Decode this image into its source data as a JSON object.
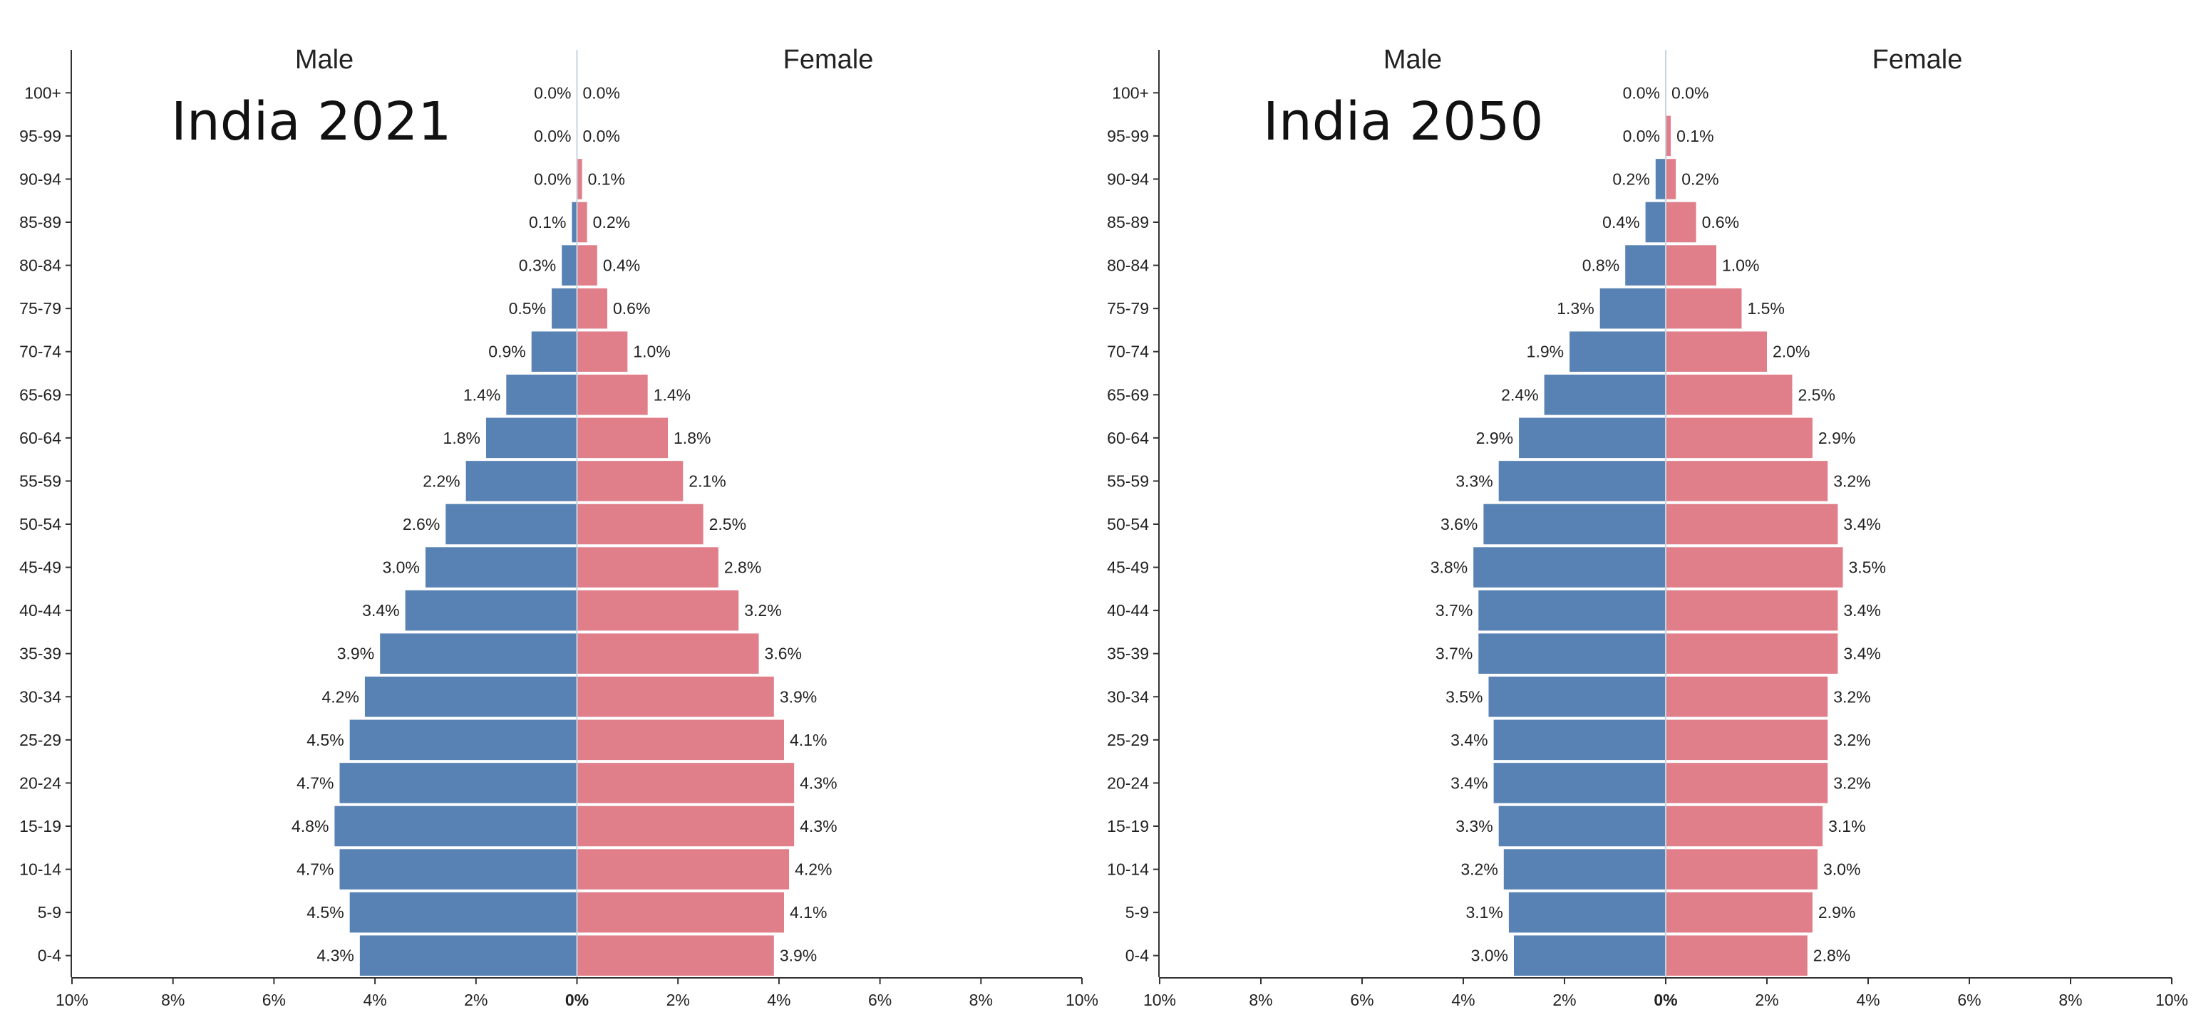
{
  "chart_data": [
    {
      "type": "bar",
      "title": "India 2021",
      "male_label": "Male",
      "female_label": "Female",
      "categories": [
        "0-4",
        "5-9",
        "10-14",
        "15-19",
        "20-24",
        "25-29",
        "30-34",
        "35-39",
        "40-44",
        "45-49",
        "50-54",
        "55-59",
        "60-64",
        "65-69",
        "70-74",
        "75-79",
        "80-84",
        "85-89",
        "90-94",
        "95-99",
        "100+"
      ],
      "series": [
        {
          "name": "Male",
          "values": [
            4.3,
            4.5,
            4.7,
            4.8,
            4.7,
            4.5,
            4.2,
            3.9,
            3.4,
            3.0,
            2.6,
            2.2,
            1.8,
            1.4,
            0.9,
            0.5,
            0.3,
            0.1,
            0.0,
            0.0,
            0.0
          ],
          "color": "#5882b3"
        },
        {
          "name": "Female",
          "values": [
            3.9,
            4.1,
            4.2,
            4.3,
            4.3,
            4.1,
            3.9,
            3.6,
            3.2,
            2.8,
            2.5,
            2.1,
            1.8,
            1.4,
            1.0,
            0.6,
            0.4,
            0.2,
            0.1,
            0.0,
            0.0
          ],
          "color": "#e07f8a"
        }
      ],
      "value_labels": {
        "male": [
          "4.3%",
          "4.5%",
          "4.7%",
          "4.8%",
          "4.7%",
          "4.5%",
          "4.2%",
          "3.9%",
          "3.4%",
          "3.0%",
          "2.6%",
          "2.2%",
          "1.8%",
          "1.4%",
          "0.9%",
          "0.5%",
          "0.3%",
          "0.1%",
          "0.0%",
          "0.0%",
          "0.0%"
        ],
        "female": [
          "3.9%",
          "4.1%",
          "4.2%",
          "4.3%",
          "4.3%",
          "4.1%",
          "3.9%",
          "3.6%",
          "3.2%",
          "2.8%",
          "2.5%",
          "2.1%",
          "1.8%",
          "1.4%",
          "1.0%",
          "0.6%",
          "0.4%",
          "0.2%",
          "0.1%",
          "0.0%",
          "0.0%"
        ]
      },
      "xlim": [
        -10,
        10
      ],
      "x_ticks": [
        -10,
        -8,
        -6,
        -4,
        -2,
        0,
        2,
        4,
        6,
        8,
        10
      ],
      "x_tick_labels": [
        "10%",
        "8%",
        "6%",
        "4%",
        "2%",
        "0%",
        "2%",
        "4%",
        "6%",
        "8%",
        "10%"
      ],
      "grid": false
    },
    {
      "type": "bar",
      "title": "India 2050",
      "male_label": "Male",
      "female_label": "Female",
      "categories": [
        "0-4",
        "5-9",
        "10-14",
        "15-19",
        "20-24",
        "25-29",
        "30-34",
        "35-39",
        "40-44",
        "45-49",
        "50-54",
        "55-59",
        "60-64",
        "65-69",
        "70-74",
        "75-79",
        "80-84",
        "85-89",
        "90-94",
        "95-99",
        "100+"
      ],
      "series": [
        {
          "name": "Male",
          "values": [
            3.0,
            3.1,
            3.2,
            3.3,
            3.4,
            3.4,
            3.5,
            3.7,
            3.7,
            3.8,
            3.6,
            3.3,
            2.9,
            2.4,
            1.9,
            1.3,
            0.8,
            0.4,
            0.2,
            0.0,
            0.0
          ],
          "color": "#5882b3"
        },
        {
          "name": "Female",
          "values": [
            2.8,
            2.9,
            3.0,
            3.1,
            3.2,
            3.2,
            3.2,
            3.4,
            3.4,
            3.5,
            3.4,
            3.2,
            2.9,
            2.5,
            2.0,
            1.5,
            1.0,
            0.6,
            0.2,
            0.1,
            0.0
          ],
          "color": "#e07f8a"
        }
      ],
      "value_labels": {
        "male": [
          "3.0%",
          "3.1%",
          "3.2%",
          "3.3%",
          "3.4%",
          "3.4%",
          "3.5%",
          "3.7%",
          "3.7%",
          "3.8%",
          "3.6%",
          "3.3%",
          "2.9%",
          "2.4%",
          "1.9%",
          "1.3%",
          "0.8%",
          "0.4%",
          "0.2%",
          "0.0%",
          "0.0%"
        ],
        "female": [
          "2.8%",
          "2.9%",
          "3.0%",
          "3.1%",
          "3.2%",
          "3.2%",
          "3.2%",
          "3.4%",
          "3.4%",
          "3.5%",
          "3.4%",
          "3.2%",
          "2.9%",
          "2.5%",
          "2.0%",
          "1.5%",
          "1.0%",
          "0.6%",
          "0.2%",
          "0.1%",
          "0.0%"
        ]
      },
      "xlim": [
        -10,
        10
      ],
      "x_ticks": [
        -10,
        -8,
        -6,
        -4,
        -2,
        0,
        2,
        4,
        6,
        8,
        10
      ],
      "x_tick_labels": [
        "10%",
        "8%",
        "6%",
        "4%",
        "2%",
        "0%",
        "2%",
        "4%",
        "6%",
        "8%",
        "10%"
      ],
      "grid": false
    }
  ]
}
